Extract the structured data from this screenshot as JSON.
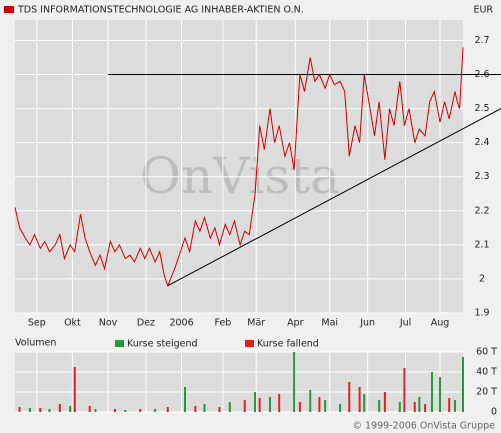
{
  "chart_data": {
    "type": "line",
    "title": "TDS INFORMATIONSTECHNOLOGIE AG INHABER-AKTIEN O.N.",
    "currency": "EUR",
    "watermark": "OnVista",
    "copyright": "© 1999-2006 OnVista Gruppe",
    "color": "#cc0000",
    "x": [
      0,
      4,
      9,
      13,
      17,
      22,
      26,
      30,
      35,
      39,
      43,
      48,
      52,
      57,
      61,
      65,
      70,
      74,
      78,
      83,
      87,
      91,
      96,
      100,
      104,
      109,
      113,
      117,
      122,
      126,
      130,
      133,
      139,
      143,
      148,
      152,
      157,
      161,
      165,
      170,
      174,
      178,
      183,
      187,
      191,
      196,
      200,
      204,
      209,
      213,
      217,
      222,
      226,
      230,
      235,
      239,
      243,
      248,
      252,
      257,
      261,
      265,
      270,
      274,
      278,
      283,
      287,
      291,
      296,
      300,
      304,
      309,
      313,
      317,
      322,
      326,
      330,
      335,
      339,
      343,
      348,
      352,
      357,
      361,
      365,
      370,
      374,
      378,
      383,
      385,
      387,
      390
    ],
    "values": [
      2.21,
      2.15,
      2.12,
      2.1,
      2.13,
      2.09,
      2.11,
      2.08,
      2.1,
      2.13,
      2.06,
      2.1,
      2.08,
      2.19,
      2.12,
      2.08,
      2.04,
      2.07,
      2.03,
      2.11,
      2.08,
      2.1,
      2.06,
      2.07,
      2.05,
      2.09,
      2.06,
      2.09,
      2.05,
      2.08,
      2.01,
      1.98,
      2.03,
      2.07,
      2.12,
      2.08,
      2.17,
      2.14,
      2.18,
      2.12,
      2.15,
      2.1,
      2.16,
      2.13,
      2.17,
      2.1,
      2.14,
      2.13,
      2.25,
      2.45,
      2.38,
      2.5,
      2.4,
      2.45,
      2.36,
      2.4,
      2.32,
      2.6,
      2.55,
      2.65,
      2.58,
      2.6,
      2.56,
      2.6,
      2.57,
      2.58,
      2.55,
      2.36,
      2.45,
      2.4,
      2.6,
      2.5,
      2.42,
      2.52,
      2.35,
      2.5,
      2.45,
      2.58,
      2.45,
      2.5,
      2.4,
      2.44,
      2.42,
      2.52,
      2.55,
      2.46,
      2.52,
      2.47,
      2.55,
      2.52,
      2.5,
      2.68
    ],
    "xlim": [
      0,
      390
    ],
    "ylim": [
      1.9,
      2.76
    ],
    "xticks": [
      {
        "value": 19,
        "label": "Sep"
      },
      {
        "value": 50,
        "label": "Okt"
      },
      {
        "value": 81,
        "label": "Nov"
      },
      {
        "value": 114,
        "label": "Dez"
      },
      {
        "value": 145,
        "label": "2006"
      },
      {
        "value": 181,
        "label": "Feb"
      },
      {
        "value": 210,
        "label": "Mär"
      },
      {
        "value": 244,
        "label": "Apr"
      },
      {
        "value": 274,
        "label": "Mai"
      },
      {
        "value": 307,
        "label": "Jun"
      },
      {
        "value": 340,
        "label": "Jul"
      },
      {
        "value": 370,
        "label": "Aug"
      }
    ],
    "yticks": [
      1.9,
      2.0,
      2.1,
      2.2,
      2.3,
      2.4,
      2.5,
      2.6,
      2.7
    ],
    "trendlines": [
      {
        "x": [
          81,
          423
        ],
        "y": [
          2.6,
          2.6
        ]
      },
      {
        "x": [
          133,
          423
        ],
        "y": [
          1.98,
          2.5
        ]
      }
    ],
    "volume": {
      "title": "Volumen",
      "ylim": [
        0,
        60
      ],
      "yticks": [
        0,
        {
          "value": 20,
          "label": "20 T"
        },
        {
          "value": 40,
          "label": "40 T"
        },
        {
          "value": 60,
          "label": "60 T"
        }
      ],
      "series": [
        {
          "name": "Kurse steigend",
          "color": "#22993a",
          "x": [
            13,
            30,
            48,
            70,
            96,
            122,
            148,
            165,
            187,
            209,
            222,
            243,
            257,
            270,
            283,
            304,
            317,
            335,
            352,
            363,
            370,
            383,
            390
          ],
          "values": [
            4,
            3,
            6,
            3,
            2,
            3,
            25,
            8,
            10,
            20,
            15,
            60,
            22,
            12,
            8,
            18,
            12,
            10,
            15,
            40,
            35,
            12,
            55
          ]
        },
        {
          "name": "Kurse fallend",
          "color": "#dd2222",
          "x": [
            4,
            22,
            39,
            52,
            65,
            87,
            109,
            133,
            157,
            178,
            200,
            213,
            230,
            248,
            265,
            291,
            300,
            322,
            339,
            348,
            357,
            378
          ],
          "values": [
            5,
            4,
            8,
            45,
            6,
            3,
            3,
            5,
            6,
            5,
            12,
            14,
            18,
            10,
            15,
            30,
            25,
            20,
            44,
            10,
            8,
            14
          ]
        }
      ]
    }
  }
}
